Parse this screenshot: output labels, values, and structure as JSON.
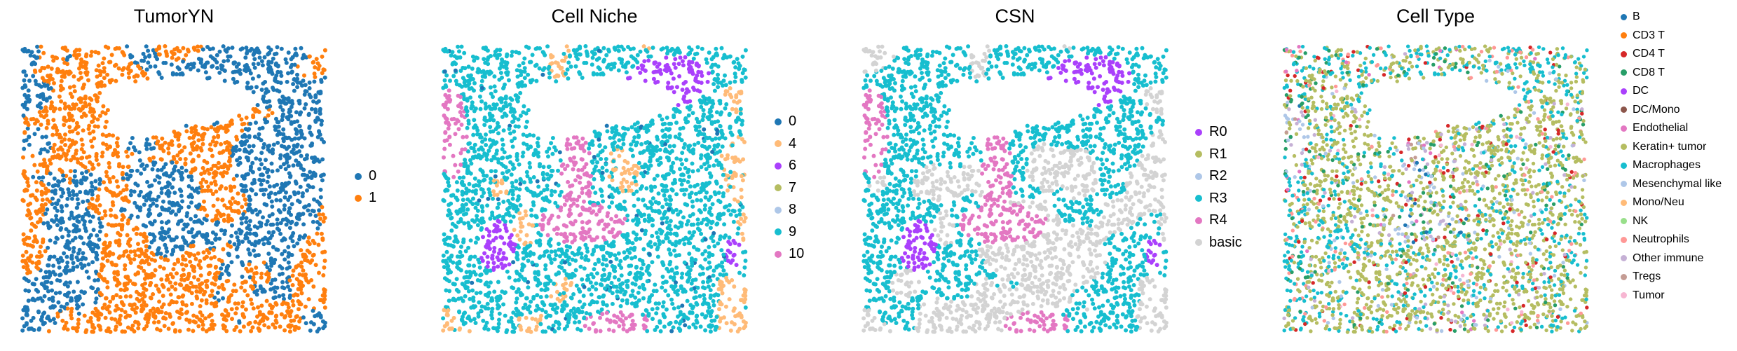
{
  "chart_data": [
    {
      "type": "scatter",
      "title": "TumorYN",
      "legend_placement": "right",
      "grid": false,
      "axes_visible": false,
      "series": [
        {
          "name": "0",
          "color": "#1f77b4"
        },
        {
          "name": "1",
          "color": "#ff7f0e"
        }
      ]
    },
    {
      "type": "scatter",
      "title": "Cell Niche",
      "legend_placement": "right",
      "grid": false,
      "axes_visible": false,
      "series": [
        {
          "name": "0",
          "color": "#1f77b4"
        },
        {
          "name": "4",
          "color": "#ffbb78"
        },
        {
          "name": "6",
          "color": "#aa40fc"
        },
        {
          "name": "7",
          "color": "#b5bd61"
        },
        {
          "name": "8",
          "color": "#aec7e8"
        },
        {
          "name": "9",
          "color": "#17becf"
        },
        {
          "name": "10",
          "color": "#e377c2"
        }
      ]
    },
    {
      "type": "scatter",
      "title": "CSN",
      "legend_placement": "right",
      "grid": false,
      "axes_visible": false,
      "series": [
        {
          "name": "R0",
          "color": "#aa40fc"
        },
        {
          "name": "R1",
          "color": "#b5bd61"
        },
        {
          "name": "R2",
          "color": "#aec7e8"
        },
        {
          "name": "R3",
          "color": "#17becf"
        },
        {
          "name": "R4",
          "color": "#e377c2"
        },
        {
          "name": "basic",
          "color": "#d3d3d3"
        }
      ]
    },
    {
      "type": "scatter",
      "title": "Cell Type",
      "legend_placement": "right",
      "grid": false,
      "axes_visible": false,
      "series": [
        {
          "name": "B",
          "color": "#1f77b4"
        },
        {
          "name": "CD3 T",
          "color": "#ff7f0e"
        },
        {
          "name": "CD4 T",
          "color": "#d62728"
        },
        {
          "name": "CD8 T",
          "color": "#279e68"
        },
        {
          "name": "DC",
          "color": "#aa40fc"
        },
        {
          "name": "DC/Mono",
          "color": "#8c564b"
        },
        {
          "name": "Endothelial",
          "color": "#e377c2"
        },
        {
          "name": "Keratin+ tumor",
          "color": "#b5bd61"
        },
        {
          "name": "Macrophages",
          "color": "#17becf"
        },
        {
          "name": "Mesenchymal like",
          "color": "#aec7e8"
        },
        {
          "name": "Mono/Neu",
          "color": "#ffbb78"
        },
        {
          "name": "NK",
          "color": "#98df8a"
        },
        {
          "name": "Neutrophils",
          "color": "#ff9896"
        },
        {
          "name": "Other immune",
          "color": "#c5b0d5"
        },
        {
          "name": "Tregs",
          "color": "#c49c94"
        },
        {
          "name": "Tumor",
          "color": "#f7b6d2"
        }
      ]
    }
  ]
}
